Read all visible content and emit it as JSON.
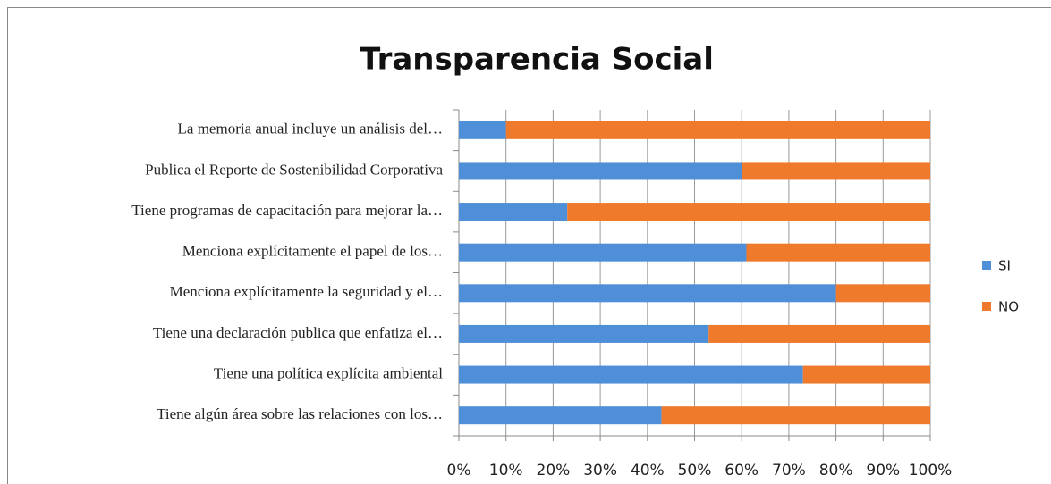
{
  "chart_data": {
    "type": "stacked_bar_horizontal",
    "title": "Transparencia Social",
    "categories": [
      "La memoria anual incluye un análisis del…",
      "Publica el Reporte de Sostenibilidad Corporativa",
      "Tiene programas de capacitación para mejorar la…",
      "Menciona explícitamente el papel de los…",
      "Menciona explícitamente la seguridad y el…",
      "Tiene una declaración publica que enfatiza el…",
      "Tiene una política explícita ambiental",
      "Tiene algún área sobre las relaciones con los…"
    ],
    "series": [
      {
        "name": "SI",
        "color": "#4f8fd8",
        "values": [
          10,
          60,
          23,
          61,
          80,
          53,
          73,
          43
        ]
      },
      {
        "name": "NO",
        "color": "#f07a2c",
        "values": [
          90,
          40,
          77,
          39,
          20,
          47,
          27,
          57
        ]
      }
    ],
    "xlim": [
      0,
      100
    ],
    "xticks": [
      {
        "value": 0,
        "label": "0%"
      },
      {
        "value": 10,
        "label": "10%"
      },
      {
        "value": 20,
        "label": "20%"
      },
      {
        "value": 30,
        "label": "30%"
      },
      {
        "value": 40,
        "label": "40%"
      },
      {
        "value": 50,
        "label": "50%"
      },
      {
        "value": 60,
        "label": "60%"
      },
      {
        "value": 70,
        "label": "70%"
      },
      {
        "value": 80,
        "label": "80%"
      },
      {
        "value": 90,
        "label": "90%"
      },
      {
        "value": 100,
        "label": "100%"
      }
    ],
    "grid": true,
    "legend": "right"
  }
}
